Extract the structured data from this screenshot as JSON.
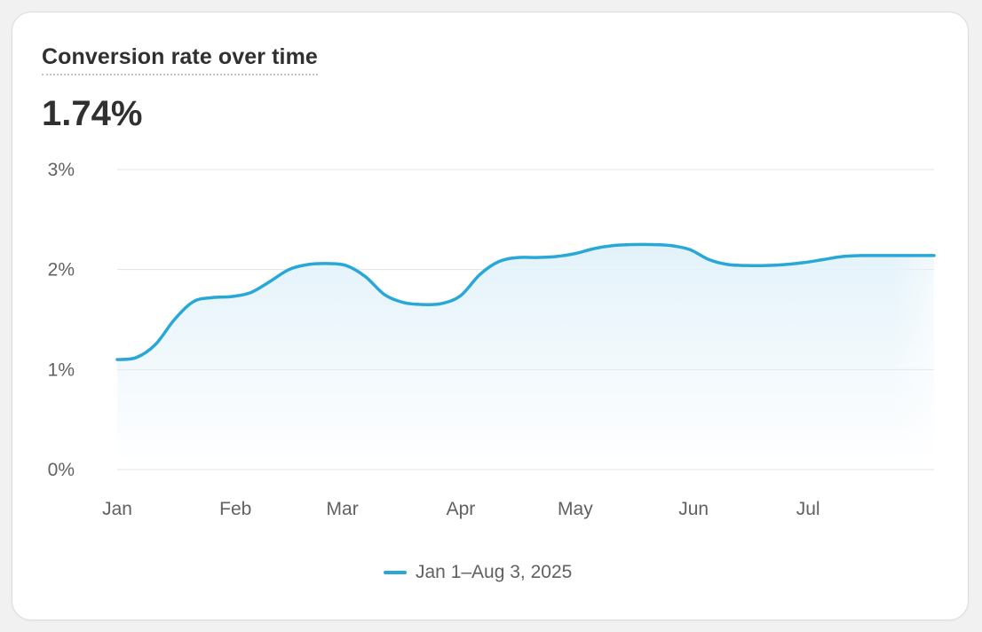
{
  "card": {
    "title": "Conversion rate over time",
    "metric": "1.74%"
  },
  "colors": {
    "series": "#29a8d8",
    "grid": "#e3e3e3",
    "area": "#e8f4fb"
  },
  "chart_data": {
    "type": "line",
    "x_unit": "days since Jan 1, 2025",
    "x": [
      0,
      5,
      10,
      15,
      20,
      25,
      30,
      35,
      40,
      45,
      50,
      55,
      60,
      65,
      70,
      75,
      80,
      85,
      90,
      95,
      100,
      105,
      110,
      115,
      120,
      125,
      130,
      135,
      140,
      145,
      150,
      155,
      160,
      165,
      170,
      175,
      180,
      185,
      190,
      195,
      200,
      205,
      210,
      214
    ],
    "series": [
      {
        "name": "Jan 1–Aug 3, 2025",
        "values": [
          1.1,
          1.12,
          1.25,
          1.5,
          1.68,
          1.72,
          1.73,
          1.77,
          1.88,
          2.0,
          2.05,
          2.06,
          2.04,
          1.93,
          1.75,
          1.67,
          1.65,
          1.66,
          1.74,
          1.95,
          2.08,
          2.12,
          2.12,
          2.13,
          2.16,
          2.21,
          2.24,
          2.25,
          2.25,
          2.24,
          2.2,
          2.1,
          2.05,
          2.04,
          2.04,
          2.05,
          2.07,
          2.1,
          2.13,
          2.14,
          2.14,
          2.14,
          2.14,
          2.14
        ]
      }
    ],
    "x_ticks": [
      {
        "label": "Jan",
        "x": 0
      },
      {
        "label": "Feb",
        "x": 31
      },
      {
        "label": "Mar",
        "x": 59
      },
      {
        "label": "Apr",
        "x": 90
      },
      {
        "label": "May",
        "x": 120
      },
      {
        "label": "Jun",
        "x": 151
      },
      {
        "label": "Jul",
        "x": 181
      }
    ],
    "y_ticks": [
      {
        "label": "0%",
        "value": 0
      },
      {
        "label": "1%",
        "value": 1
      },
      {
        "label": "2%",
        "value": 2
      },
      {
        "label": "3%",
        "value": 3
      }
    ],
    "xlim": [
      0,
      214
    ],
    "ylim": [
      0,
      3
    ],
    "grid": true,
    "legend": "bottom-center"
  }
}
